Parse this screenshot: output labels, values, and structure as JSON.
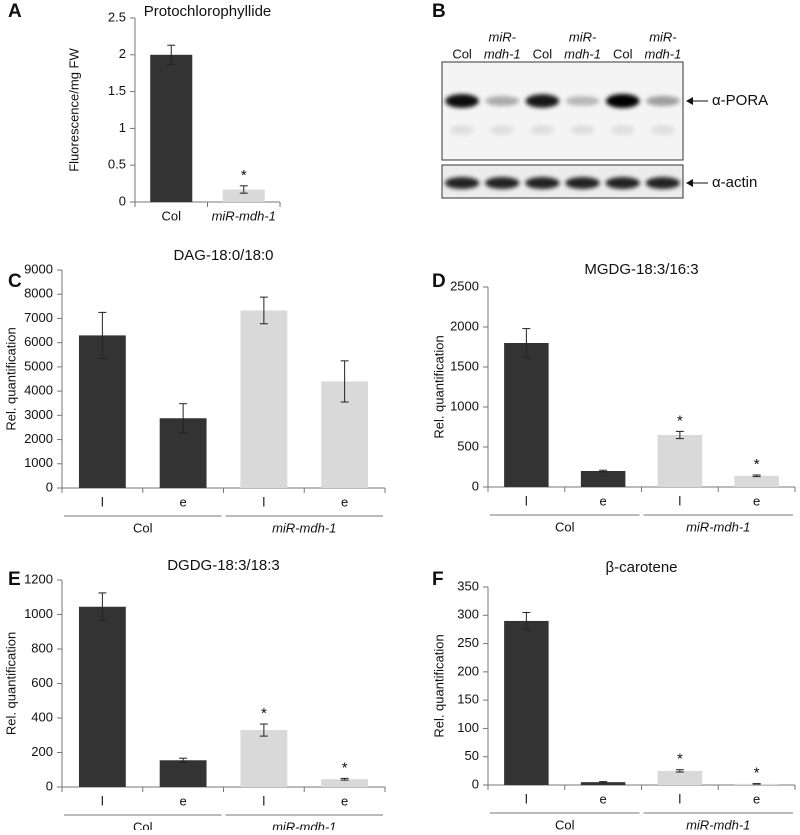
{
  "chart_data": [
    {
      "type": "bar",
      "panel": "A",
      "title": "Protochlorophyllide",
      "y_label": "Fluorescence/mg FW",
      "categories": [
        "Col",
        "miR-mdh-1"
      ],
      "values": [
        2.0,
        0.17
      ],
      "errors": [
        0.13,
        0.05
      ],
      "colors": [
        "#333333",
        "#d9d9d9"
      ],
      "annotations": [
        null,
        "*"
      ],
      "ylim": [
        0,
        2.5
      ],
      "yticks": [
        0,
        0.5,
        1,
        1.5,
        2,
        2.5
      ]
    },
    {
      "type": "bar",
      "panel": "C",
      "title": "DAG-18:0/18:0",
      "y_label": "Rel. quantification",
      "categories": [
        "l",
        "e",
        "l",
        "e"
      ],
      "groups": [
        "Col",
        "miR-mdh-1"
      ],
      "values": [
        6300,
        2880,
        7330,
        4400
      ],
      "errors": [
        950,
        600,
        550,
        850
      ],
      "colors": [
        "#333333",
        "#333333",
        "#d9d9d9",
        "#d9d9d9"
      ],
      "annotations": [
        null,
        null,
        null,
        null
      ],
      "ylim": [
        0,
        9000
      ],
      "yticks": [
        0,
        1000,
        2000,
        3000,
        4000,
        5000,
        6000,
        7000,
        8000,
        9000
      ]
    },
    {
      "type": "bar",
      "panel": "D",
      "title": "MGDG-18:3/16:3",
      "y_label": "Rel. quantification",
      "categories": [
        "l",
        "e",
        "l",
        "e"
      ],
      "groups": [
        "Col",
        "miR-mdh-1"
      ],
      "values": [
        1800,
        200,
        650,
        140
      ],
      "errors": [
        180,
        10,
        45,
        10
      ],
      "colors": [
        "#333333",
        "#333333",
        "#d9d9d9",
        "#d9d9d9"
      ],
      "annotations": [
        null,
        null,
        "*",
        "*"
      ],
      "ylim": [
        0,
        2500
      ],
      "yticks": [
        0,
        500,
        1000,
        1500,
        2000,
        2500
      ]
    },
    {
      "type": "bar",
      "panel": "E",
      "title": "DGDG-18:3/18:3",
      "y_label": "Rel. quantification",
      "categories": [
        "l",
        "e",
        "l",
        "e"
      ],
      "groups": [
        "Col",
        "miR-mdh-1"
      ],
      "values": [
        1045,
        155,
        330,
        45
      ],
      "errors": [
        80,
        12,
        35,
        5
      ],
      "colors": [
        "#333333",
        "#333333",
        "#d9d9d9",
        "#d9d9d9"
      ],
      "annotations": [
        null,
        null,
        "*",
        "*"
      ],
      "ylim": [
        0,
        1200
      ],
      "yticks": [
        0,
        200,
        400,
        600,
        800,
        1000,
        1200
      ]
    },
    {
      "type": "bar",
      "panel": "F",
      "title": "β-carotene",
      "y_label": "Rel. quantification",
      "categories": [
        "l",
        "e",
        "l",
        "e"
      ],
      "groups": [
        "Col",
        "miR-mdh-1"
      ],
      "values": [
        290,
        5,
        25,
        2
      ],
      "errors": [
        15,
        1,
        2,
        0.5
      ],
      "colors": [
        "#333333",
        "#333333",
        "#d9d9d9",
        "#d9d9d9"
      ],
      "annotations": [
        null,
        null,
        "*",
        "*"
      ],
      "ylim": [
        0,
        350
      ],
      "yticks": [
        0,
        50,
        100,
        150,
        200,
        250,
        300,
        350
      ]
    }
  ],
  "blot": {
    "panel": "B",
    "lanes": [
      [
        "Col"
      ],
      [
        "miR-",
        "mdh-1"
      ],
      [
        "Col"
      ],
      [
        "miR-",
        "mdh-1"
      ],
      [
        "Col"
      ],
      [
        "miR-",
        "mdh-1"
      ]
    ],
    "bands": [
      "α-PORA",
      "α-actin"
    ]
  }
}
